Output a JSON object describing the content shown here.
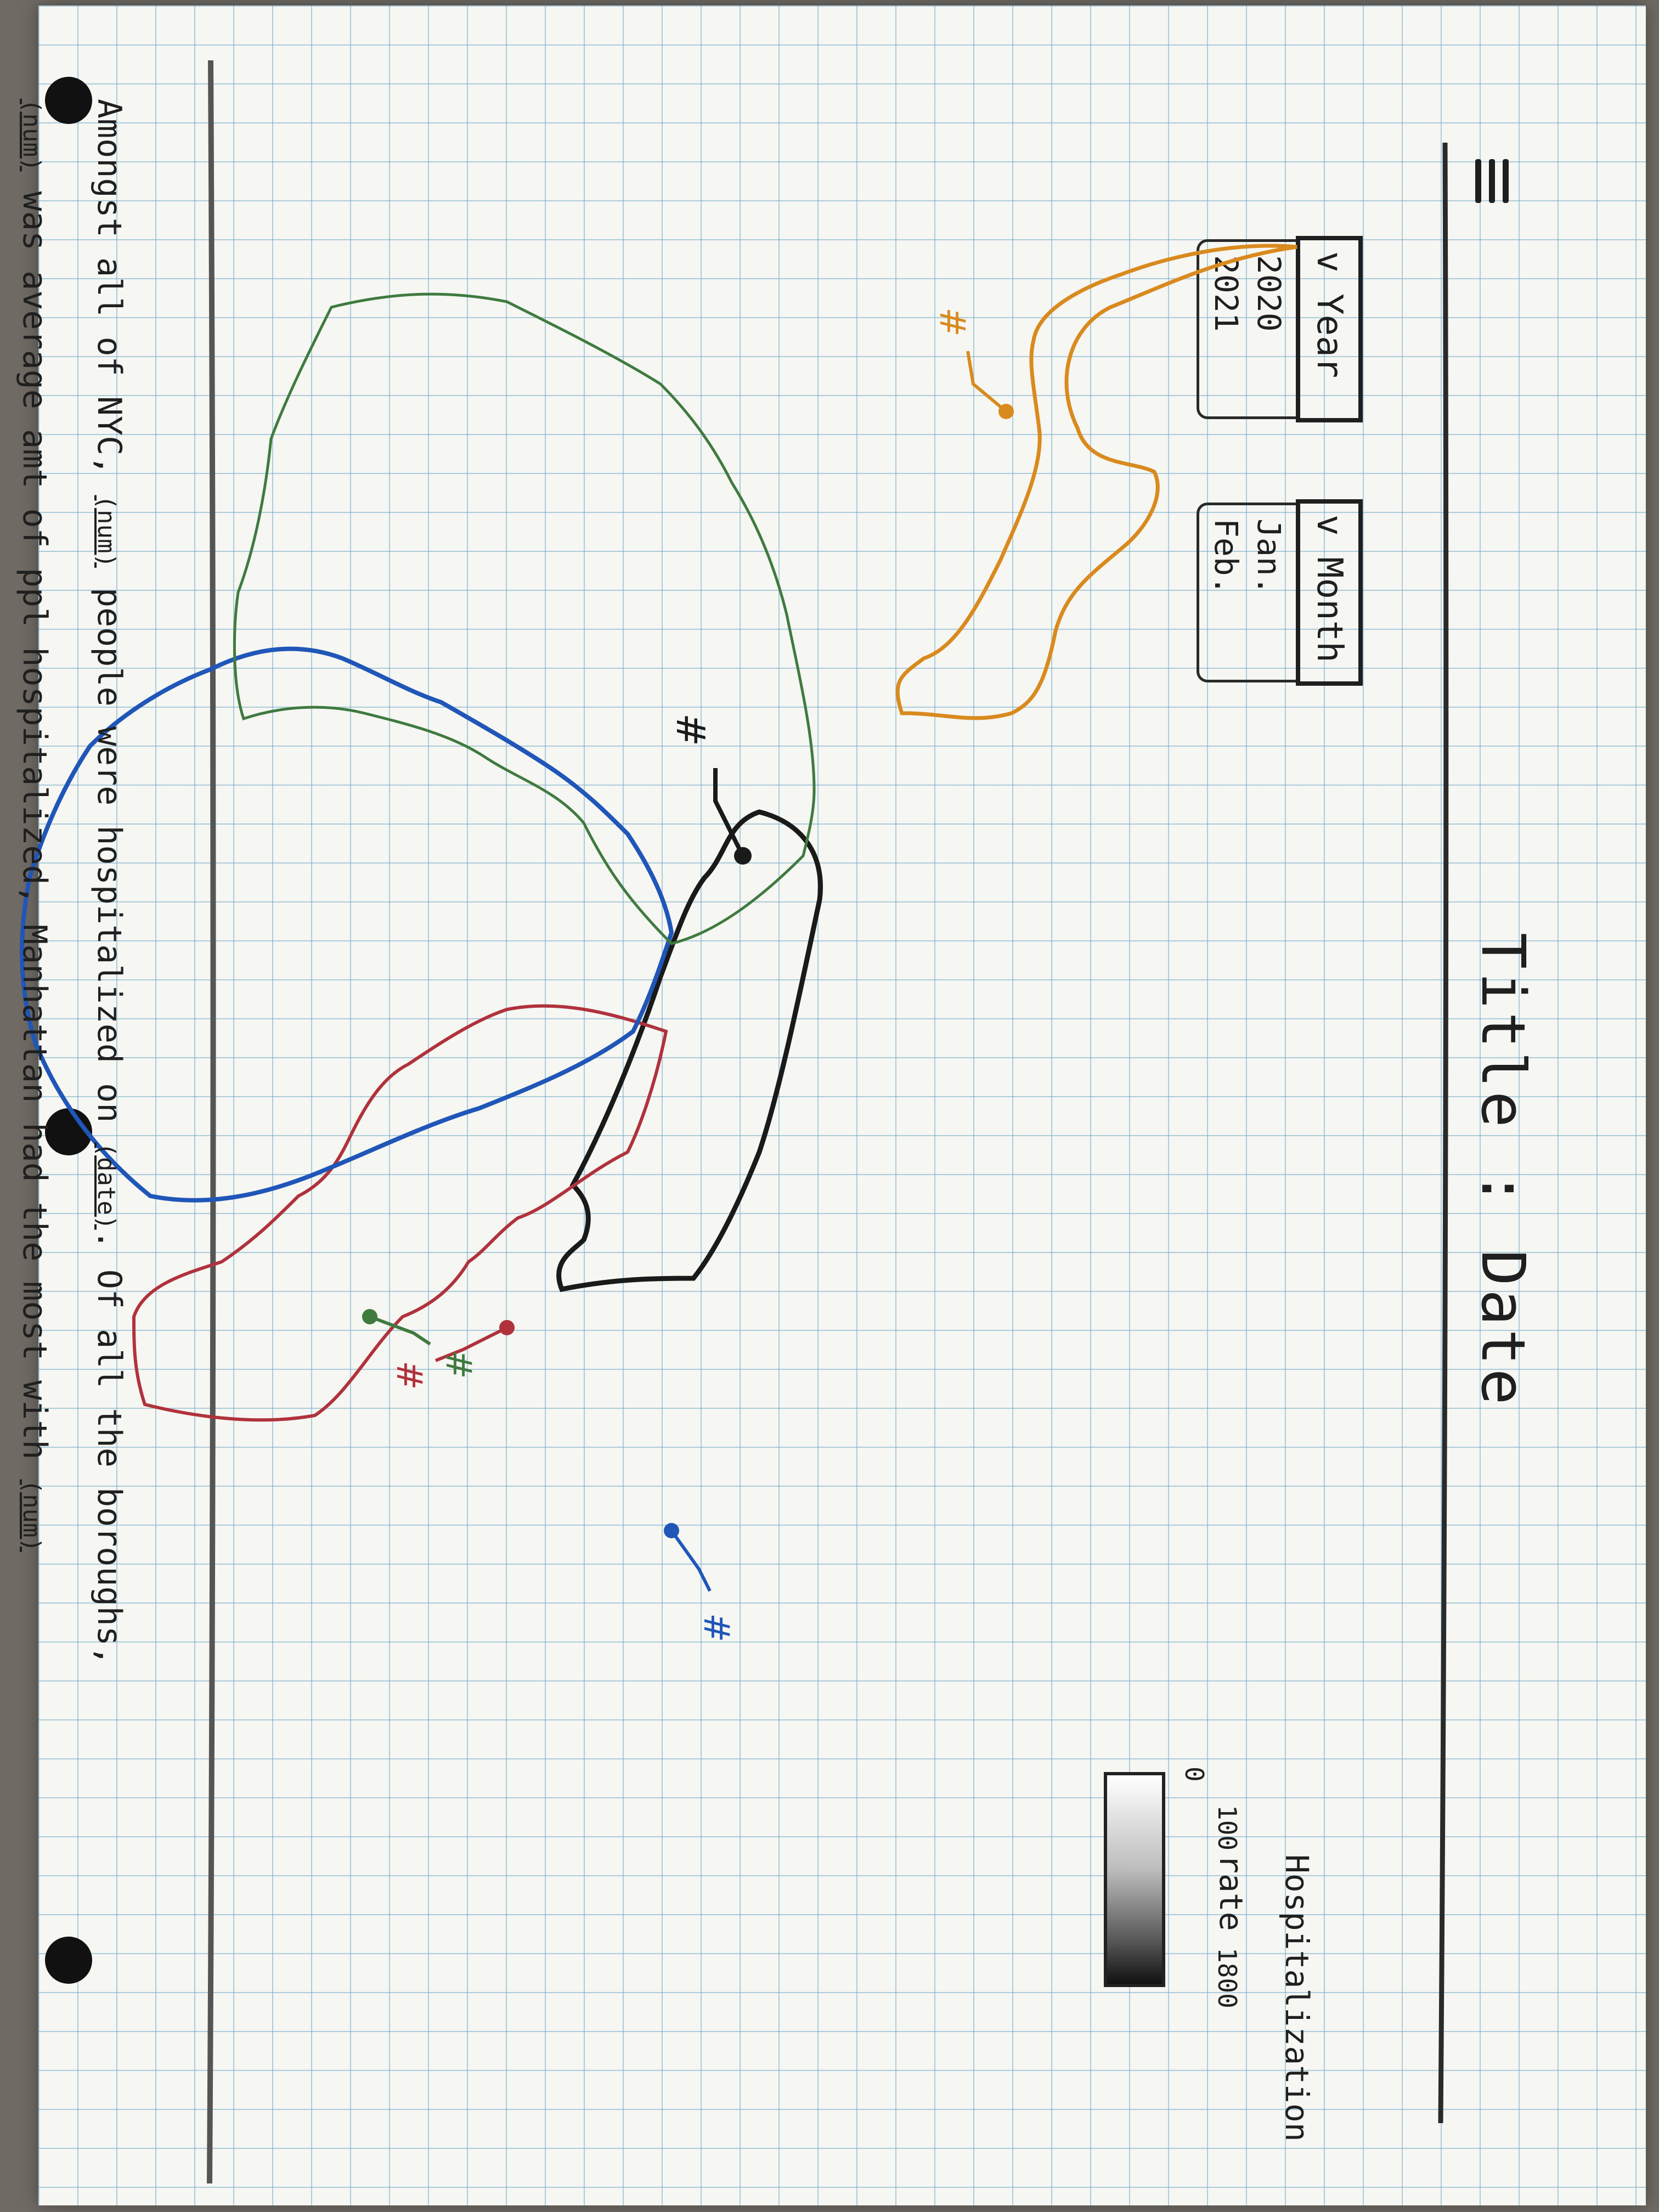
{
  "title": "Title : Date",
  "menu_icon": "hamburger-menu-icon",
  "year_dropdown": {
    "label": "v Year",
    "options": [
      "2020",
      "2021"
    ]
  },
  "month_dropdown": {
    "label": "v Month",
    "options": [
      "Jan.",
      "Feb."
    ]
  },
  "legend": {
    "title": "Hospitalization rate",
    "ticks": [
      "0",
      "100",
      "1800"
    ]
  },
  "map": {
    "marker_label": "#",
    "borough_colors": {
      "bronx": "#b0323c",
      "manhattan": "#1a1a1a",
      "queens": "#1f56b8",
      "brooklyn": "#3f7a3f",
      "staten_island": "#d98a1e"
    }
  },
  "summary": {
    "line1_a": "Amongst all of NYC,",
    "blank_num": "(num)",
    "line1_b": "people were hospitalized on",
    "blank_date": "(date)",
    "line1_c": ". Of all the boroughs,",
    "line2_a": "was average amt of ppl hospitalized, Manhattan had the most with",
    "blank_num2": "(num)"
  }
}
